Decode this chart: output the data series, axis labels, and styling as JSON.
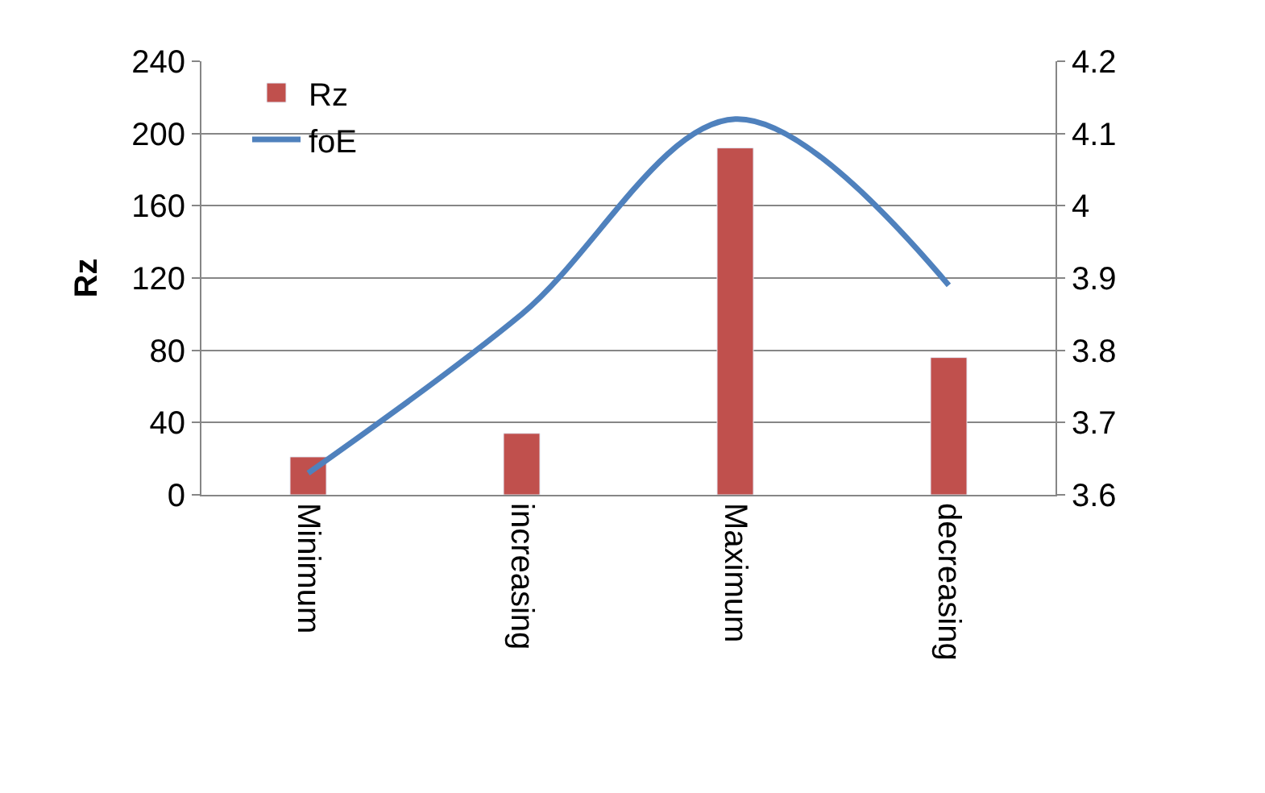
{
  "chart_data": {
    "type": "bar",
    "ylabel": "Rz",
    "categories": [
      "Minimum",
      "increasing",
      "Maximum",
      "decreasing"
    ],
    "series": [
      {
        "name": "Rz",
        "color": "#c0504d",
        "values": [
          21,
          34,
          192,
          76
        ]
      },
      {
        "name": "foE",
        "type": "line",
        "axis": "y2",
        "color": "#4f81bd",
        "values": [
          3.63,
          3.85,
          4.12,
          3.89
        ]
      }
    ],
    "ylim": [
      0,
      240
    ],
    "yticks": [
      0,
      40,
      80,
      120,
      160,
      200,
      240
    ],
    "y2lim": [
      3.6,
      4.2
    ],
    "y2ticks": [
      3.6,
      3.7,
      3.8,
      3.9,
      4,
      4.1,
      4.2
    ],
    "grid": "y",
    "legend": "top left",
    "marker": "none"
  }
}
